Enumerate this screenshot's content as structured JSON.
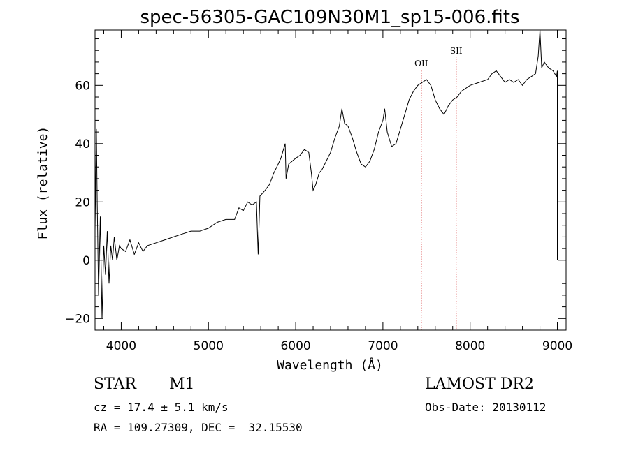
{
  "title": "spec-56305-GAC109N30M1_sp15-006.fits",
  "info": {
    "object_class": "STAR",
    "subclass": "M1",
    "cz_line": "cz = 17.4 ± 5.1 km/s",
    "radec_line": "RA = 109.27309, DEC =  32.15530",
    "survey": "LAMOST DR2",
    "obs_date": "Obs-Date: 20130112"
  },
  "chart_data": {
    "type": "line",
    "title": "spec-56305-GAC109N30M1_sp15-006.fits",
    "xlabel": "Wavelength (Å)",
    "ylabel": "Flux (relative)",
    "xlim": [
      3700,
      9100
    ],
    "ylim": [
      -24,
      79
    ],
    "xticks": [
      4000,
      5000,
      6000,
      7000,
      8000,
      9000
    ],
    "yticks": [
      -20,
      0,
      20,
      40,
      60
    ],
    "minor_x_step": 200,
    "minor_y_step": 4,
    "grid": false,
    "series": [
      {
        "points": [
          [
            3700,
            10
          ],
          [
            3715,
            45
          ],
          [
            3725,
            20
          ],
          [
            3740,
            -12
          ],
          [
            3760,
            15
          ],
          [
            3780,
            -20
          ],
          [
            3800,
            5
          ],
          [
            3820,
            -5
          ],
          [
            3840,
            10
          ],
          [
            3860,
            -8
          ],
          [
            3880,
            5
          ],
          [
            3900,
            0
          ],
          [
            3920,
            8
          ],
          [
            3950,
            0
          ],
          [
            3980,
            5
          ],
          [
            4000,
            4
          ],
          [
            4050,
            3
          ],
          [
            4100,
            7
          ],
          [
            4150,
            2
          ],
          [
            4200,
            6
          ],
          [
            4250,
            3
          ],
          [
            4300,
            5
          ],
          [
            4400,
            6
          ],
          [
            4500,
            7
          ],
          [
            4600,
            8
          ],
          [
            4700,
            9
          ],
          [
            4800,
            10
          ],
          [
            4900,
            10
          ],
          [
            5000,
            11
          ],
          [
            5100,
            13
          ],
          [
            5200,
            14
          ],
          [
            5300,
            14
          ],
          [
            5350,
            18
          ],
          [
            5400,
            17
          ],
          [
            5450,
            20
          ],
          [
            5500,
            19
          ],
          [
            5550,
            20
          ],
          [
            5570,
            2
          ],
          [
            5590,
            22
          ],
          [
            5650,
            24
          ],
          [
            5700,
            26
          ],
          [
            5750,
            30
          ],
          [
            5800,
            33
          ],
          [
            5830,
            35
          ],
          [
            5860,
            38
          ],
          [
            5880,
            40
          ],
          [
            5890,
            28
          ],
          [
            5920,
            33
          ],
          [
            6000,
            35
          ],
          [
            6050,
            36
          ],
          [
            6100,
            38
          ],
          [
            6150,
            37
          ],
          [
            6180,
            30
          ],
          [
            6200,
            24
          ],
          [
            6230,
            26
          ],
          [
            6270,
            30
          ],
          [
            6300,
            31
          ],
          [
            6350,
            34
          ],
          [
            6400,
            37
          ],
          [
            6450,
            42
          ],
          [
            6500,
            46
          ],
          [
            6530,
            52
          ],
          [
            6560,
            47
          ],
          [
            6600,
            46
          ],
          [
            6650,
            42
          ],
          [
            6700,
            37
          ],
          [
            6750,
            33
          ],
          [
            6800,
            32
          ],
          [
            6850,
            34
          ],
          [
            6900,
            38
          ],
          [
            6950,
            44
          ],
          [
            7000,
            48
          ],
          [
            7020,
            52
          ],
          [
            7050,
            44
          ],
          [
            7100,
            39
          ],
          [
            7150,
            40
          ],
          [
            7200,
            45
          ],
          [
            7250,
            50
          ],
          [
            7300,
            55
          ],
          [
            7350,
            58
          ],
          [
            7400,
            60
          ],
          [
            7450,
            61
          ],
          [
            7500,
            62
          ],
          [
            7550,
            60
          ],
          [
            7600,
            55
          ],
          [
            7650,
            52
          ],
          [
            7700,
            50
          ],
          [
            7750,
            53
          ],
          [
            7800,
            55
          ],
          [
            7850,
            56
          ],
          [
            7900,
            58
          ],
          [
            8000,
            60
          ],
          [
            8100,
            61
          ],
          [
            8200,
            62
          ],
          [
            8250,
            64
          ],
          [
            8300,
            65
          ],
          [
            8350,
            63
          ],
          [
            8400,
            61
          ],
          [
            8450,
            62
          ],
          [
            8500,
            61
          ],
          [
            8550,
            62
          ],
          [
            8600,
            60
          ],
          [
            8650,
            62
          ],
          [
            8700,
            63
          ],
          [
            8750,
            64
          ],
          [
            8780,
            70
          ],
          [
            8800,
            79
          ],
          [
            8820,
            66
          ],
          [
            8850,
            68
          ],
          [
            8900,
            66
          ],
          [
            8950,
            65
          ],
          [
            8990,
            63
          ],
          [
            9000,
            65
          ],
          [
            9000,
            0
          ]
        ]
      }
    ],
    "annotations": [
      {
        "label": "OII",
        "x": 7440
      },
      {
        "label": "SII",
        "x": 7840
      }
    ],
    "line_color": "#000000",
    "marker_color": "#cc0000"
  }
}
